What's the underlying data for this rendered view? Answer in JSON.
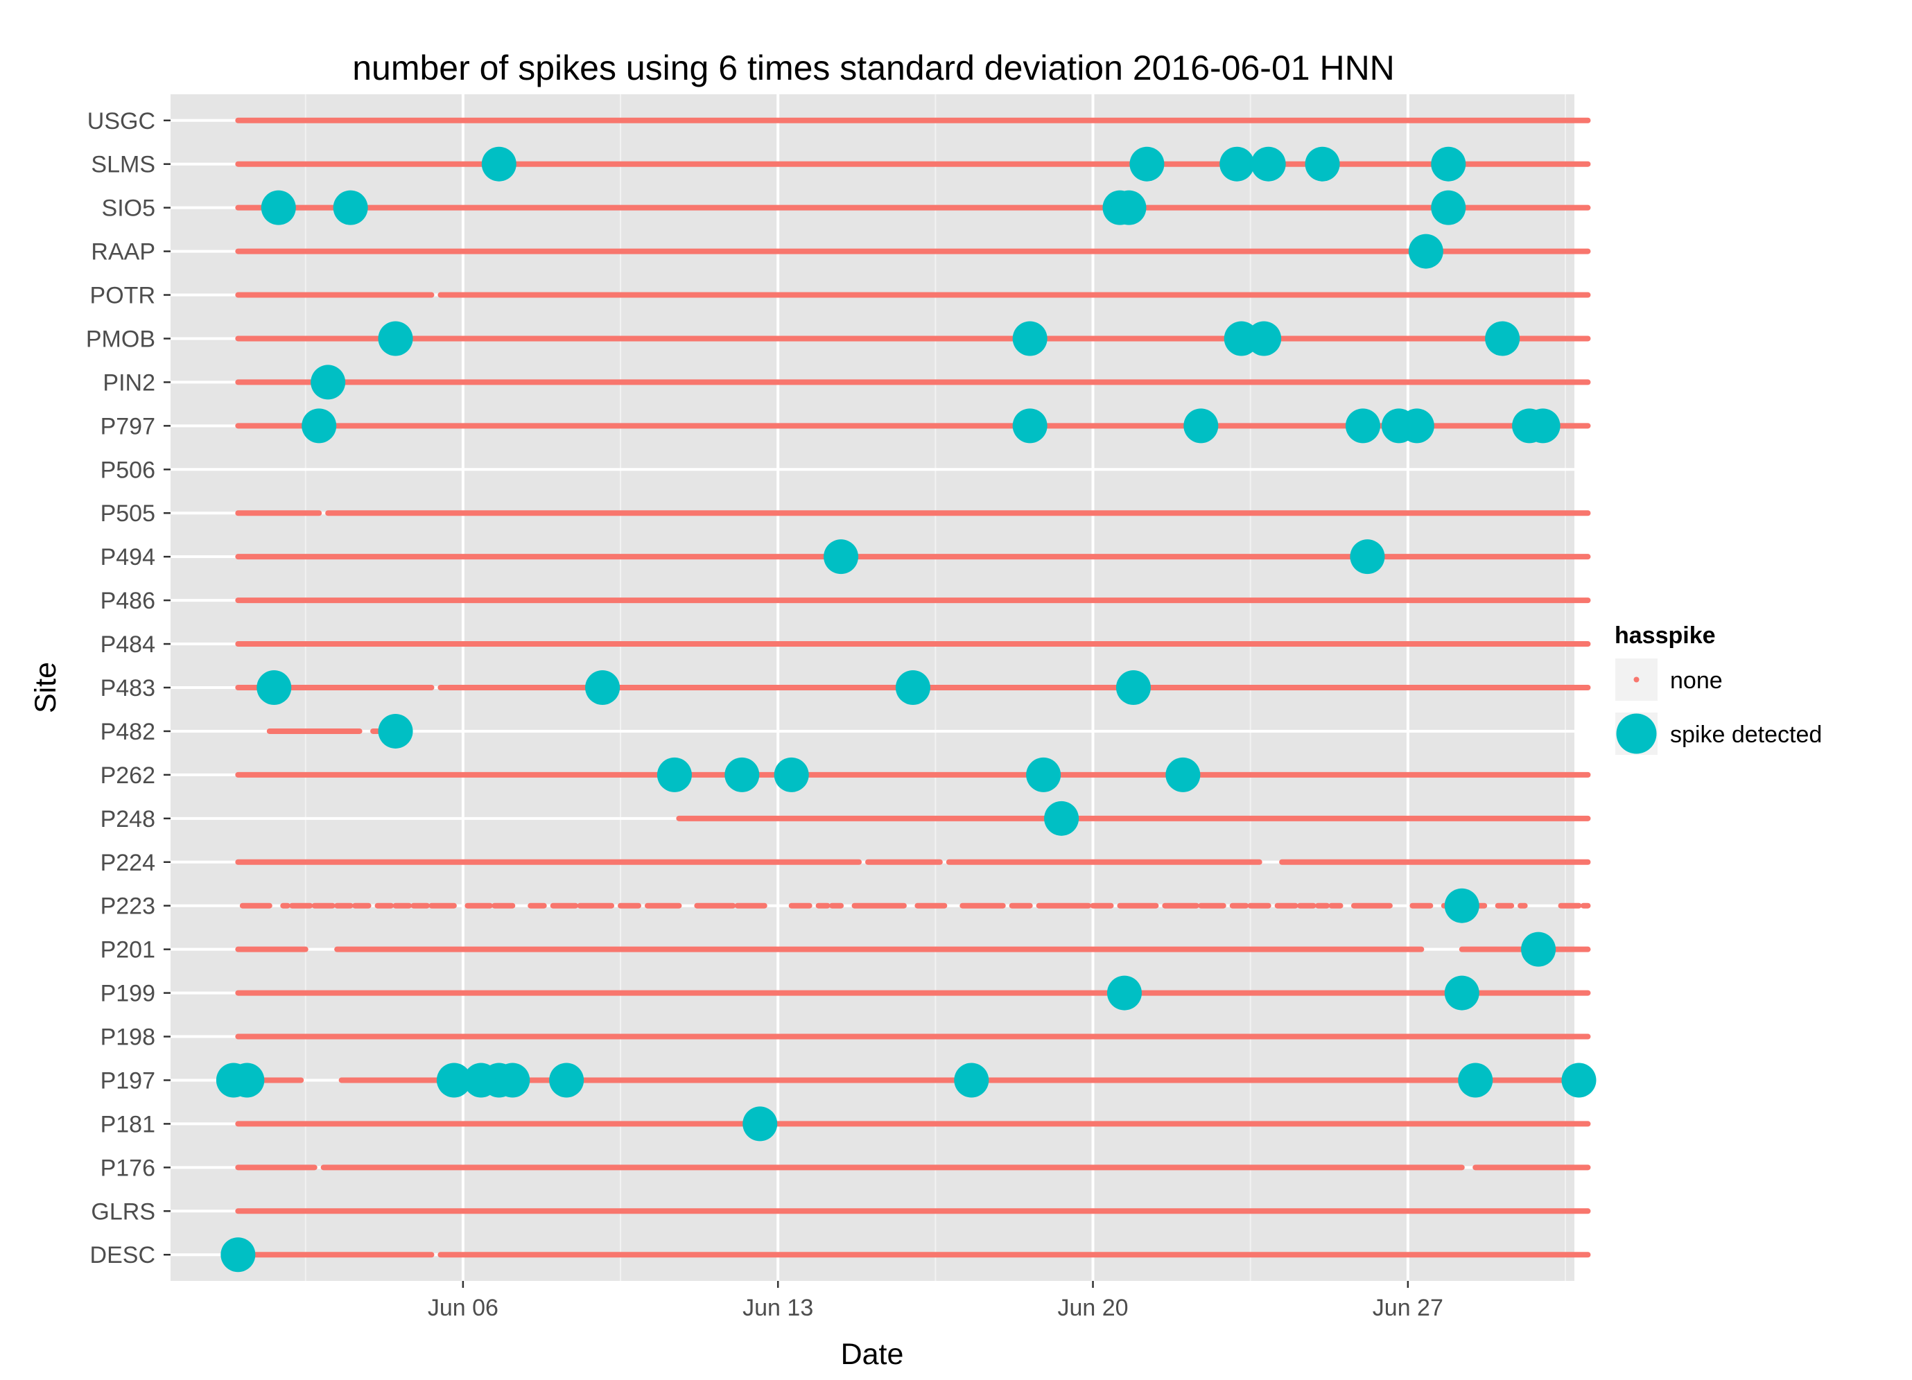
{
  "chart_data": {
    "type": "scatter",
    "title": "number of spikes using  6 times standard deviation 2016-06-01 HNN",
    "xlabel": "Date",
    "ylabel": "Site",
    "x_unit": "day of June 2016",
    "xlim": [
      -0.5,
      30.7
    ],
    "x_ticks": [
      {
        "value": 6,
        "label": "Jun 06"
      },
      {
        "value": 13,
        "label": "Jun 13"
      },
      {
        "value": 20,
        "label": "Jun 20"
      },
      {
        "value": 27,
        "label": "Jun 27"
      }
    ],
    "sites": [
      "USGC",
      "SLMS",
      "SIO5",
      "RAAP",
      "POTR",
      "PMOB",
      "PIN2",
      "P797",
      "P506",
      "P505",
      "P494",
      "P486",
      "P484",
      "P483",
      "P482",
      "P262",
      "P248",
      "P224",
      "P223",
      "P201",
      "P199",
      "P198",
      "P197",
      "P181",
      "P176",
      "GLRS",
      "DESC"
    ],
    "legend": {
      "title": "hasspike",
      "position": "right",
      "entries": [
        {
          "label": "none",
          "color": "#F8766D"
        },
        {
          "label": "spike detected",
          "color": "#00BFC4"
        }
      ]
    },
    "series": [
      {
        "name": "none",
        "color": "#F8766D",
        "segments": {
          "USGC": [
            [
              1,
              31
            ]
          ],
          "SLMS": [
            [
              1,
              31
            ]
          ],
          "SIO5": [
            [
              1,
              31
            ]
          ],
          "RAAP": [
            [
              1,
              31
            ]
          ],
          "POTR": [
            [
              1,
              5.3
            ],
            [
              5.5,
              31
            ]
          ],
          "PMOB": [
            [
              1,
              31
            ]
          ],
          "PIN2": [
            [
              1,
              31
            ]
          ],
          "P797": [
            [
              1,
              31
            ]
          ],
          "P506": [],
          "P505": [
            [
              1,
              2.8
            ],
            [
              3.0,
              31
            ]
          ],
          "P494": [
            [
              1,
              31
            ]
          ],
          "P486": [
            [
              1,
              31
            ]
          ],
          "P484": [
            [
              1,
              31
            ]
          ],
          "P483": [
            [
              1,
              5.3
            ],
            [
              5.5,
              31
            ]
          ],
          "P482": [
            [
              1.7,
              3.7
            ],
            [
              4.0,
              4.3
            ]
          ],
          "P262": [
            [
              1,
              31
            ]
          ],
          "P248": [
            [
              10.8,
              31
            ]
          ],
          "P224": [
            [
              1,
              14.8
            ],
            [
              15.0,
              16.6
            ],
            [
              16.8,
              23.7
            ],
            [
              24.2,
              31
            ]
          ],
          "P223": [
            [
              1.1,
              1.7
            ],
            [
              2.0,
              2.1
            ],
            [
              2.2,
              2.6
            ],
            [
              2.7,
              3.1
            ],
            [
              3.2,
              3.5
            ],
            [
              3.6,
              3.9
            ],
            [
              4.1,
              4.4
            ],
            [
              4.5,
              4.8
            ],
            [
              4.9,
              5.2
            ],
            [
              5.3,
              5.8
            ],
            [
              6.1,
              6.6
            ],
            [
              6.7,
              7.1
            ],
            [
              7.5,
              7.8
            ],
            [
              8.0,
              8.5
            ],
            [
              8.6,
              9.3
            ],
            [
              9.5,
              9.9
            ],
            [
              10.1,
              10.8
            ],
            [
              11.2,
              12.0
            ],
            [
              12.1,
              12.7
            ],
            [
              13.3,
              13.7
            ],
            [
              13.9,
              14.1
            ],
            [
              14.2,
              14.4
            ],
            [
              14.7,
              15.8
            ],
            [
              16.1,
              16.7
            ],
            [
              17.1,
              18.0
            ],
            [
              18.2,
              18.6
            ],
            [
              18.8,
              19.9
            ],
            [
              20.0,
              20.4
            ],
            [
              20.6,
              21.4
            ],
            [
              21.6,
              22.3
            ],
            [
              22.4,
              22.9
            ],
            [
              23.1,
              23.4
            ],
            [
              23.5,
              23.9
            ],
            [
              24.1,
              24.5
            ],
            [
              24.6,
              24.9
            ],
            [
              25.0,
              25.2
            ],
            [
              25.3,
              25.5
            ],
            [
              25.8,
              26.6
            ],
            [
              27.1,
              27.5
            ],
            [
              27.8,
              28.2
            ],
            [
              28.5,
              28.7
            ],
            [
              29.0,
              29.3
            ],
            [
              29.5,
              29.6
            ],
            [
              30.4,
              30.8
            ],
            [
              30.9,
              31.0
            ]
          ],
          "P201": [
            [
              1,
              2.5
            ],
            [
              3.2,
              27.3
            ],
            [
              28.2,
              31
            ]
          ],
          "P199": [
            [
              1,
              31
            ]
          ],
          "P198": [
            [
              1,
              31
            ]
          ],
          "P197": [
            [
              1,
              2.4
            ],
            [
              3.3,
              31
            ]
          ],
          "P181": [
            [
              1,
              31
            ]
          ],
          "P176": [
            [
              1,
              2.7
            ],
            [
              2.9,
              28.2
            ],
            [
              28.5,
              31
            ]
          ],
          "GLRS": [
            [
              1,
              31
            ]
          ],
          "DESC": [
            [
              1,
              5.3
            ],
            [
              5.5,
              31
            ]
          ]
        }
      },
      {
        "name": "spike detected",
        "color": "#00BFC4",
        "points": [
          {
            "site": "SLMS",
            "x": [
              6.8,
              21.2,
              23.2,
              23.9,
              25.1,
              27.9
            ]
          },
          {
            "site": "SIO5",
            "x": [
              1.9,
              3.5,
              20.6,
              20.8,
              27.9
            ]
          },
          {
            "site": "RAAP",
            "x": [
              27.4
            ]
          },
          {
            "site": "PMOB",
            "x": [
              4.5,
              18.6,
              23.3,
              23.8,
              29.1
            ]
          },
          {
            "site": "PIN2",
            "x": [
              3.0
            ]
          },
          {
            "site": "P797",
            "x": [
              2.8,
              18.6,
              22.4,
              26.0,
              26.8,
              27.2,
              29.7,
              30.0
            ]
          },
          {
            "site": "P494",
            "x": [
              14.4,
              26.1
            ]
          },
          {
            "site": "P483",
            "x": [
              1.8,
              9.1,
              16.0,
              20.9
            ]
          },
          {
            "site": "P482",
            "x": [
              4.5
            ]
          },
          {
            "site": "P262",
            "x": [
              10.7,
              12.2,
              13.3,
              18.9,
              22.0
            ]
          },
          {
            "site": "P248",
            "x": [
              19.3
            ]
          },
          {
            "site": "P223",
            "x": [
              28.2
            ]
          },
          {
            "site": "P201",
            "x": [
              29.9
            ]
          },
          {
            "site": "P199",
            "x": [
              20.7,
              28.2
            ]
          },
          {
            "site": "P197",
            "x": [
              0.9,
              1.2,
              5.8,
              6.4,
              6.8,
              7.1,
              8.3,
              17.3,
              28.5,
              30.8
            ]
          },
          {
            "site": "P181",
            "x": [
              12.6
            ]
          },
          {
            "site": "DESC",
            "x": [
              1.0
            ]
          }
        ]
      }
    ]
  }
}
